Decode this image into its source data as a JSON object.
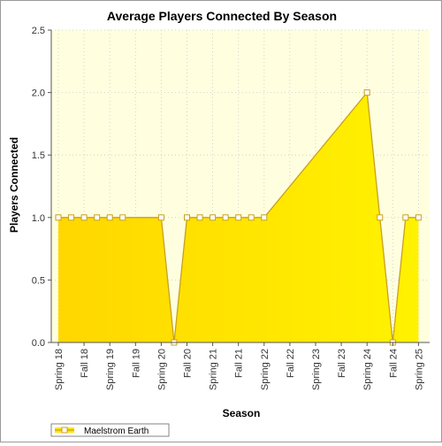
{
  "chart_data": {
    "type": "area",
    "title": "Average Players Connected By Season",
    "xlabel": "Season",
    "ylabel": "Players Connected",
    "ylim": [
      0,
      2.5
    ],
    "yticks": [
      "0.0",
      "0.5",
      "1.0",
      "1.5",
      "2.0",
      "2.5"
    ],
    "categories": [
      "Spring 18",
      "Fall 18",
      "Spring 19",
      "Fall 19",
      "Spring 20",
      "Fall 20",
      "Spring 21",
      "Fall 21",
      "Spring 22",
      "Fall 22",
      "Spring 23",
      "Fall 23",
      "Spring 24",
      "Fall 24",
      "Spring 25"
    ],
    "grid": true,
    "legend_position": "bottom-left",
    "series": [
      {
        "name": "Maelstrom Earth",
        "color": "#ffe600",
        "line_color": "#c8a020",
        "points": [
          [
            0.0,
            1
          ],
          [
            0.5,
            1
          ],
          [
            1.0,
            1
          ],
          [
            1.5,
            1
          ],
          [
            2.0,
            1
          ],
          [
            2.5,
            1
          ],
          [
            4.0,
            1
          ],
          [
            4.5,
            0
          ],
          [
            5.0,
            1
          ],
          [
            5.5,
            1
          ],
          [
            6.0,
            1
          ],
          [
            6.5,
            1
          ],
          [
            7.0,
            1
          ],
          [
            7.5,
            1
          ],
          [
            8.0,
            1
          ],
          [
            12.0,
            2
          ],
          [
            12.5,
            1
          ],
          [
            13.0,
            0
          ],
          [
            13.5,
            1
          ],
          [
            14.0,
            1
          ]
        ]
      }
    ]
  },
  "colors": {
    "plot_background": "#ffffe0",
    "grid": "#c8c8c8",
    "axis": "#555555"
  }
}
